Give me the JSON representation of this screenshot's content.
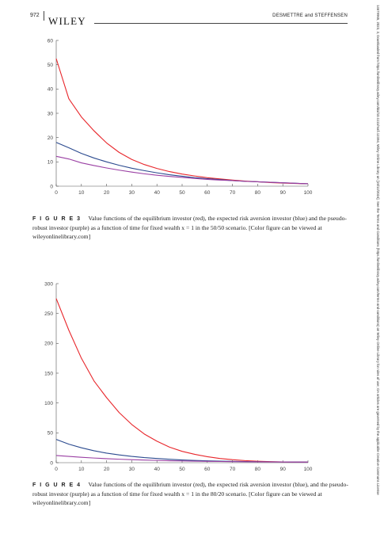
{
  "header": {
    "page_number": "972",
    "publisher": "WILEY",
    "authors": "DESMETTRE and STEFFENSEN"
  },
  "side_note": "14679965, 2023, 3, Downloaded from https://onlinelibrary.wiley.com/doi/10.1111/mafi.12394, Wiley Online Library on [18/12/2024]. See the Terms and Conditions (https://onlinelibrary.wiley.com/terms-and-conditions) on Wiley Online Library for rules of use; OA articles are governed by the applicable Creative Commons License",
  "colors": {
    "equilibrium": "#e8262b",
    "expected": "#2b4a8f",
    "robust": "#9a3fa3"
  },
  "figures": [
    {
      "caption_label": "F I G U R E  3",
      "caption_text": "Value functions of the equilibrium investor (red), the expected risk aversion investor (blue) and the pseudo-robust investor (purple) as a function of time for fixed wealth x = 1 in the 50/50 scenario. [Color figure can be viewed at wileyonlinelibrary.com]"
    },
    {
      "caption_label": "F I G U R E  4",
      "caption_text": "Value functions of the equilibrium investor (red), the expected risk aversion investor (blue), and the pseudo-robust investor (purple) as a function of time for fixed wealth x = 1 in the 80/20 scenario. [Color figure can be viewed at wileyonlinelibrary.com]"
    }
  ],
  "chart_data": [
    {
      "type": "line",
      "xlim": [
        0,
        100
      ],
      "ylim": [
        0,
        60
      ],
      "xticks": [
        0,
        10,
        20,
        30,
        40,
        50,
        60,
        70,
        80,
        90,
        100
      ],
      "yticks": [
        0,
        10,
        20,
        30,
        40,
        50,
        60
      ],
      "grid": false,
      "x": [
        0,
        5,
        10,
        15,
        20,
        25,
        30,
        35,
        40,
        45,
        50,
        55,
        60,
        65,
        70,
        75,
        80,
        85,
        90,
        95,
        100
      ],
      "series": [
        {
          "color": "#e8262b",
          "values": [
            52.5,
            36,
            28.5,
            22.8,
            17.8,
            13.9,
            11,
            8.9,
            7.3,
            6,
            5,
            4.2,
            3.5,
            3,
            2.5,
            2.1,
            1.8,
            1.5,
            1.3,
            1.1,
            1
          ]
        },
        {
          "color": "#2b4a8f",
          "values": [
            18,
            15.8,
            13.5,
            11.6,
            10,
            8.6,
            7.4,
            6.4,
            5.5,
            4.7,
            4.1,
            3.5,
            3.1,
            2.7,
            2.3,
            2,
            1.8,
            1.6,
            1.4,
            1.2,
            1
          ]
        },
        {
          "color": "#9a3fa3",
          "values": [
            12.3,
            11.2,
            9.6,
            8.5,
            7.5,
            6.6,
            5.8,
            5.1,
            4.5,
            4,
            3.6,
            3.2,
            2.8,
            2.5,
            2.3,
            2,
            1.8,
            1.6,
            1.4,
            1.2,
            1
          ]
        }
      ]
    },
    {
      "type": "line",
      "xlim": [
        0,
        100
      ],
      "ylim": [
        0,
        300
      ],
      "xticks": [
        0,
        10,
        20,
        30,
        40,
        50,
        60,
        70,
        80,
        90,
        100
      ],
      "yticks": [
        0,
        50,
        100,
        150,
        200,
        250,
        300
      ],
      "grid": false,
      "x": [
        0,
        5,
        10,
        15,
        20,
        25,
        30,
        35,
        40,
        45,
        50,
        55,
        60,
        65,
        70,
        75,
        80,
        85,
        90,
        95,
        100
      ],
      "series": [
        {
          "color": "#e8262b",
          "values": [
            275,
            222,
            175,
            137,
            109,
            84,
            64,
            48,
            36,
            26,
            19,
            14,
            10,
            7,
            5,
            3.5,
            2.5,
            1.8,
            1.3,
            1.1,
            1
          ]
        },
        {
          "color": "#2b4a8f",
          "values": [
            39,
            31,
            25,
            20,
            16,
            13,
            10.5,
            8.5,
            7,
            5.7,
            4.6,
            3.8,
            3.1,
            2.6,
            2.2,
            1.9,
            1.6,
            1.4,
            1.2,
            1.1,
            1
          ]
        },
        {
          "color": "#9a3fa3",
          "values": [
            12,
            10.5,
            9,
            7.8,
            6.7,
            5.8,
            5,
            4.4,
            3.8,
            3.3,
            2.9,
            2.6,
            2.3,
            2,
            1.8,
            1.6,
            1.4,
            1.3,
            1.2,
            1.1,
            1
          ]
        }
      ]
    }
  ]
}
